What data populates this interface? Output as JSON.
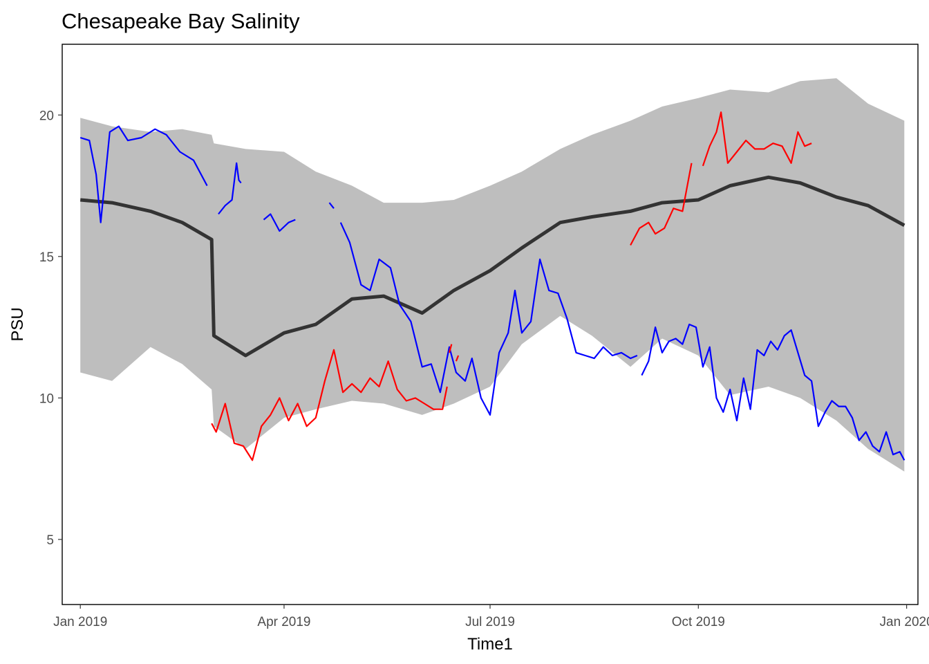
{
  "chart_data": {
    "type": "line",
    "title": "Chesapeake Bay Salinity",
    "xlabel": "Time1",
    "ylabel": "PSU",
    "x_ticks": [
      "Jan 2019",
      "Apr 2019",
      "Jul 2019",
      "Oct 2019",
      "Jan 2020"
    ],
    "y_ticks": [
      "5",
      "10",
      "15",
      "20"
    ],
    "xlim": [
      "2018-12-24",
      "2020-01-06"
    ],
    "ylim": [
      2.7,
      22.5
    ],
    "grid": false,
    "legend": "none",
    "colors": {
      "ribbon": "#bebebe",
      "median_band": "#333333",
      "series_blue": "#0000ff",
      "series_red": "#ff0000",
      "frame": "#000000"
    },
    "ribbon": {
      "x": [
        "2019-01-01",
        "2019-01-15",
        "2019-02-01",
        "2019-02-15",
        "2019-02-28",
        "2019-03-01",
        "2019-03-15",
        "2019-04-01",
        "2019-04-15",
        "2019-05-01",
        "2019-05-15",
        "2019-06-01",
        "2019-06-15",
        "2019-07-01",
        "2019-07-15",
        "2019-08-01",
        "2019-08-15",
        "2019-09-01",
        "2019-09-15",
        "2019-10-01",
        "2019-10-15",
        "2019-11-01",
        "2019-11-15",
        "2019-12-01",
        "2019-12-15",
        "2019-12-31"
      ],
      "upper": [
        19.9,
        19.6,
        19.4,
        19.5,
        19.3,
        19.0,
        18.8,
        18.7,
        18.0,
        17.5,
        16.9,
        16.9,
        17.0,
        17.5,
        18.0,
        18.8,
        19.3,
        19.8,
        20.3,
        20.6,
        20.9,
        20.8,
        21.2,
        21.3,
        20.4,
        19.8
      ],
      "lower": [
        10.9,
        10.6,
        11.8,
        11.2,
        10.3,
        9.0,
        8.2,
        9.3,
        9.6,
        9.9,
        9.8,
        9.4,
        9.8,
        10.4,
        11.9,
        12.9,
        12.2,
        11.1,
        12.1,
        11.5,
        10.1,
        10.4,
        10.0,
        9.2,
        8.2,
        7.4
      ]
    },
    "median_band": {
      "x": [
        "2019-01-01",
        "2019-01-15",
        "2019-02-01",
        "2019-02-15",
        "2019-02-28",
        "2019-03-01",
        "2019-03-15",
        "2019-04-01",
        "2019-04-15",
        "2019-05-01",
        "2019-05-15",
        "2019-06-01",
        "2019-06-15",
        "2019-07-01",
        "2019-07-15",
        "2019-08-01",
        "2019-08-15",
        "2019-09-01",
        "2019-09-15",
        "2019-10-01",
        "2019-10-15",
        "2019-11-01",
        "2019-11-15",
        "2019-12-01",
        "2019-12-15",
        "2019-12-31"
      ],
      "y": [
        17.0,
        16.9,
        16.6,
        16.2,
        15.6,
        12.2,
        11.5,
        12.3,
        12.6,
        13.5,
        13.6,
        13.0,
        13.8,
        14.5,
        15.3,
        16.2,
        16.4,
        16.6,
        16.9,
        17.0,
        17.5,
        17.8,
        17.6,
        17.1,
        16.8,
        16.1
      ]
    },
    "series": [
      {
        "color": "#0000ff",
        "segments": [
          {
            "x": [
              "2019-01-01",
              "2019-01-05",
              "2019-01-08",
              "2019-01-10",
              "2019-01-14",
              "2019-01-18",
              "2019-01-22",
              "2019-01-28",
              "2019-02-03",
              "2019-02-08",
              "2019-02-14",
              "2019-02-20",
              "2019-02-26"
            ],
            "y": [
              19.2,
              19.1,
              17.9,
              16.2,
              19.4,
              19.6,
              19.1,
              19.2,
              19.5,
              19.3,
              18.7,
              18.4,
              17.5
            ]
          },
          {
            "x": [
              "2019-03-03",
              "2019-03-06",
              "2019-03-09",
              "2019-03-11",
              "2019-03-12",
              "2019-03-13"
            ],
            "y": [
              16.5,
              16.8,
              17.0,
              18.3,
              17.7,
              17.6
            ]
          },
          {
            "x": [
              "2019-03-23",
              "2019-03-26",
              "2019-03-30",
              "2019-04-03",
              "2019-04-06"
            ],
            "y": [
              16.3,
              16.5,
              15.9,
              16.2,
              16.3
            ]
          },
          {
            "x": [
              "2019-04-21",
              "2019-04-23"
            ],
            "y": [
              16.9,
              16.7
            ]
          },
          {
            "x": [
              "2019-04-26",
              "2019-04-30",
              "2019-05-05",
              "2019-05-09",
              "2019-05-13",
              "2019-05-18",
              "2019-05-22",
              "2019-05-27",
              "2019-06-01",
              "2019-06-05",
              "2019-06-09",
              "2019-06-13",
              "2019-06-16",
              "2019-06-20",
              "2019-06-23",
              "2019-06-27",
              "2019-07-01",
              "2019-07-05",
              "2019-07-09",
              "2019-07-12",
              "2019-07-15",
              "2019-07-19",
              "2019-07-23",
              "2019-07-27",
              "2019-07-31",
              "2019-08-04",
              "2019-08-08",
              "2019-08-12",
              "2019-08-16",
              "2019-08-20",
              "2019-08-24",
              "2019-08-28",
              "2019-09-01",
              "2019-09-04"
            ],
            "y": [
              16.2,
              15.5,
              14.0,
              13.8,
              14.9,
              14.6,
              13.3,
              12.7,
              11.1,
              11.2,
              10.2,
              11.8,
              10.9,
              10.6,
              11.4,
              10.0,
              9.4,
              11.6,
              12.3,
              13.8,
              12.3,
              12.7,
              14.9,
              13.8,
              13.7,
              12.8,
              11.6,
              11.5,
              11.4,
              11.8,
              11.5,
              11.6,
              11.4,
              11.5
            ]
          },
          {
            "x": [
              "2019-09-06",
              "2019-09-09",
              "2019-09-12",
              "2019-09-15",
              "2019-09-18",
              "2019-09-21",
              "2019-09-24",
              "2019-09-27",
              "2019-09-30",
              "2019-10-03",
              "2019-10-06",
              "2019-10-09",
              "2019-10-12",
              "2019-10-15",
              "2019-10-18",
              "2019-10-21",
              "2019-10-24",
              "2019-10-27",
              "2019-10-30",
              "2019-11-02",
              "2019-11-05",
              "2019-11-08",
              "2019-11-11",
              "2019-11-14",
              "2019-11-17",
              "2019-11-20",
              "2019-11-23",
              "2019-11-26",
              "2019-11-29",
              "2019-12-02",
              "2019-12-05",
              "2019-12-08",
              "2019-12-11",
              "2019-12-14",
              "2019-12-17",
              "2019-12-20",
              "2019-12-23",
              "2019-12-26",
              "2019-12-29",
              "2019-12-31"
            ],
            "y": [
              10.8,
              11.3,
              12.5,
              11.6,
              12.0,
              12.1,
              11.9,
              12.6,
              12.5,
              11.1,
              11.8,
              10.0,
              9.5,
              10.3,
              9.2,
              10.7,
              9.6,
              11.7,
              11.5,
              12.0,
              11.7,
              12.2,
              12.4,
              11.6,
              10.8,
              10.6,
              9.0,
              9.5,
              9.9,
              9.7,
              9.7,
              9.3,
              8.5,
              8.8,
              8.3,
              8.1,
              8.8,
              8.0,
              8.1,
              7.8
            ]
          }
        ]
      },
      {
        "color": "#ff0000",
        "segments": [
          {
            "x": [
              "2019-02-28",
              "2019-03-02",
              "2019-03-06",
              "2019-03-10",
              "2019-03-14",
              "2019-03-18",
              "2019-03-22",
              "2019-03-26",
              "2019-03-30",
              "2019-04-03",
              "2019-04-07",
              "2019-04-11",
              "2019-04-15",
              "2019-04-19",
              "2019-04-23",
              "2019-04-27",
              "2019-05-01",
              "2019-05-05",
              "2019-05-09",
              "2019-05-13",
              "2019-05-17",
              "2019-05-21",
              "2019-05-25",
              "2019-05-29",
              "2019-06-02",
              "2019-06-06",
              "2019-06-10",
              "2019-06-12"
            ],
            "y": [
              9.1,
              8.8,
              9.8,
              8.4,
              8.3,
              7.8,
              9.0,
              9.4,
              10.0,
              9.2,
              9.8,
              9.0,
              9.3,
              10.6,
              11.7,
              10.2,
              10.5,
              10.2,
              10.7,
              10.4,
              11.3,
              10.3,
              9.9,
              10.0,
              9.8,
              9.6,
              9.6,
              10.4
            ]
          },
          {
            "x": [
              "2019-06-13",
              "2019-06-14"
            ],
            "y": [
              11.6,
              11.9
            ]
          },
          {
            "x": [
              "2019-06-16",
              "2019-06-17"
            ],
            "y": [
              11.3,
              11.5
            ]
          },
          {
            "x": [
              "2019-09-01",
              "2019-09-05",
              "2019-09-09",
              "2019-09-12",
              "2019-09-16",
              "2019-09-20",
              "2019-09-24",
              "2019-09-28"
            ],
            "y": [
              15.4,
              16.0,
              16.2,
              15.8,
              16.0,
              16.7,
              16.6,
              18.3
            ]
          },
          {
            "x": [
              "2019-10-03",
              "2019-10-06",
              "2019-10-09",
              "2019-10-11",
              "2019-10-14",
              "2019-10-18",
              "2019-10-22",
              "2019-10-26",
              "2019-10-30",
              "2019-11-03",
              "2019-11-07",
              "2019-11-11",
              "2019-11-14",
              "2019-11-17",
              "2019-11-20"
            ],
            "y": [
              18.2,
              18.9,
              19.4,
              20.1,
              18.3,
              18.7,
              19.1,
              18.8,
              18.8,
              19.0,
              18.9,
              18.3,
              19.4,
              18.9,
              19.0
            ]
          }
        ]
      }
    ]
  }
}
